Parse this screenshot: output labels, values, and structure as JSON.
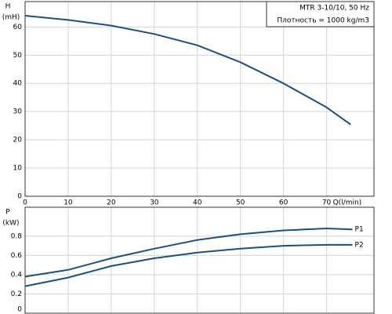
{
  "chart_data": [
    {
      "type": "line",
      "annotations": [
        "MTR 3-10/10, 50 Hz",
        "Плотность = 1000 kg/m3"
      ],
      "ylabel": "H",
      "ylabel_unit": "(mH)",
      "xlabel": "Q(l/min)",
      "x": [
        0,
        10,
        20,
        30,
        40,
        50,
        60,
        70,
        75.6
      ],
      "series": [
        {
          "name": "H",
          "color": "#1f4e7a",
          "values": [
            64,
            62.5,
            60.5,
            57.5,
            53.5,
            47.5,
            40,
            31.5,
            25.4
          ]
        }
      ],
      "xlim": [
        0,
        81
      ],
      "ylim": [
        0,
        69
      ],
      "xticks": [
        0,
        10,
        20,
        30,
        40,
        50,
        60,
        70
      ],
      "yticks": [
        0,
        10,
        20,
        30,
        40,
        50,
        60
      ],
      "xtick_labels": true,
      "series_labels": false,
      "grid": true
    },
    {
      "type": "line",
      "ylabel": "P",
      "ylabel_unit": "(kW)",
      "x": [
        0,
        10,
        20,
        30,
        40,
        50,
        60,
        70,
        76
      ],
      "series": [
        {
          "name": "P1",
          "color": "#1f4e7a",
          "values": [
            0.38,
            0.45,
            0.57,
            0.67,
            0.76,
            0.82,
            0.86,
            0.88,
            0.87
          ]
        },
        {
          "name": "P2",
          "color": "#1f4e7a",
          "values": [
            0.28,
            0.37,
            0.49,
            0.57,
            0.63,
            0.67,
            0.7,
            0.71,
            0.71
          ]
        }
      ],
      "xlim": [
        0,
        81
      ],
      "ylim": [
        0,
        1.1
      ],
      "xticks": [
        0,
        10,
        20,
        30,
        40,
        50,
        60,
        70
      ],
      "yticks": [
        0,
        0.2,
        0.4,
        0.6,
        0.8
      ],
      "xtick_labels": false,
      "series_labels": true,
      "grid": true
    }
  ]
}
